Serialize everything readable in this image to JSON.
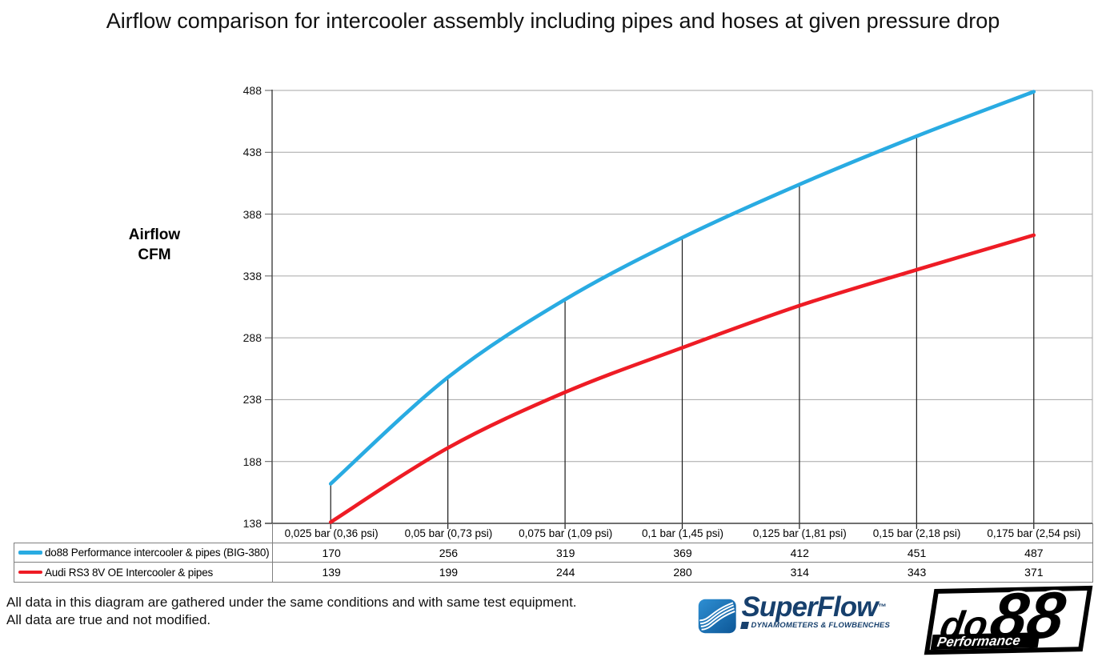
{
  "title": "Airflow comparison for intercooler assembly including pipes and hoses at given pressure drop",
  "y_axis": {
    "label_line1": "Airflow",
    "label_line2": "CFM",
    "ticks": [
      488,
      438,
      388,
      338,
      288,
      238,
      188,
      138
    ]
  },
  "chart_data": {
    "type": "line",
    "title": "Airflow comparison for intercooler assembly including pipes and hoses at given pressure drop",
    "ylabel": "Airflow CFM",
    "ylim": [
      138,
      488
    ],
    "y_tick_step": 50,
    "grid": "horizontal",
    "legend_position": "bottom-left table",
    "drop_lines_to_axis": true,
    "categories": [
      "0,025 bar (0,36 psi)",
      "0,05 bar (0,73 psi)",
      "0,075 bar (1,09 psi)",
      "0,1 bar (1,45 psi)",
      "0,125 bar (1,81 psi)",
      "0,15 bar (2,18 psi)",
      "0,175 bar (2,54 psi)"
    ],
    "series": [
      {
        "name": "do88 Performance intercooler & pipes (BIG-380)",
        "color": "#29abe2",
        "values": [
          170,
          256,
          319,
          369,
          412,
          451,
          487
        ]
      },
      {
        "name": "Audi RS3 8V OE Intercooler & pipes",
        "color": "#ee1c25",
        "values": [
          139,
          199,
          244,
          280,
          314,
          343,
          371
        ]
      }
    ]
  },
  "colors": {
    "gridline": "#a6a6a6",
    "axis": "#404040",
    "drop_line": "#1a1a1a",
    "table_border": "#7f7f7f"
  },
  "footer": {
    "line1": "All data in this diagram are gathered under the same conditions and with same test equipment.",
    "line2": "All data are true and not modified."
  },
  "logos": {
    "superflow": {
      "wordmark": "SuperFlow",
      "trademark": "™",
      "tagline": "DYNAMOMETERS & FLOWBENCHES",
      "icon_color_top": "#2e8fd3",
      "icon_color_bottom": "#0d5797",
      "text_color": "#17406d"
    },
    "do88": {
      "wordmark_do": "do",
      "wordmark_88": "88",
      "tagline": "Performance",
      "color": "#000000"
    }
  }
}
